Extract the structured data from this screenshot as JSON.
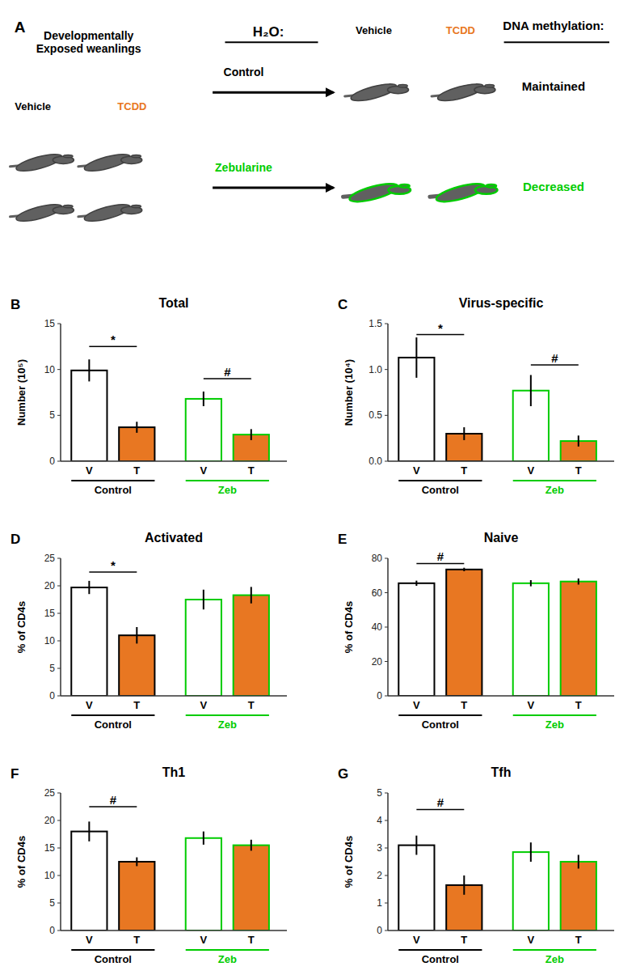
{
  "chart_data": [
    {
      "type": "diagram",
      "annotations": [
        {
          "text": "A"
        },
        {
          "text": "Developmentally\nExposed weanlings"
        },
        {
          "text": "Vehicle"
        },
        {
          "text": "TCDD",
          "color": "#E87722"
        },
        {
          "text": "H₂O:"
        },
        {
          "text": "Control"
        },
        {
          "text": "Zebularine",
          "color": "#00CC00"
        },
        {
          "text": "Vehicle"
        },
        {
          "text": "TCDD",
          "color": "#E87722"
        },
        {
          "text": "DNA methylation:"
        },
        {
          "text": "Maintained"
        },
        {
          "text": "Decreased",
          "color": "#00CC00"
        }
      ]
    },
    {
      "type": "bar",
      "panel_label": "B",
      "title": "Total",
      "ylabel": "Number (10⁵)",
      "categories": [
        "V",
        "T",
        "V",
        "T"
      ],
      "values": [
        9.9,
        3.7,
        6.8,
        2.9
      ],
      "errors": [
        1.2,
        0.6,
        0.8,
        0.6
      ],
      "colors": [
        "white",
        "#E87722",
        "white",
        "#E87722"
      ],
      "edge_colors": [
        "black",
        "black",
        "#00CC00",
        "#00CC00"
      ],
      "groups": [
        {
          "name": "Control",
          "color": "black"
        },
        {
          "name": "Zeb",
          "color": "#00CC00"
        }
      ],
      "ylim": [
        0,
        15
      ],
      "yticks": [
        0,
        5,
        10,
        15
      ],
      "grid": false,
      "annotations": [
        {
          "text": "*",
          "x1": 0,
          "x2": 1,
          "y": 12.5
        },
        {
          "text": "#",
          "x1": 2,
          "x2": 3,
          "y": 9.0
        }
      ]
    },
    {
      "type": "bar",
      "panel_label": "C",
      "title": "Virus-specific",
      "ylabel": "Number (10⁴)",
      "categories": [
        "V",
        "T",
        "V",
        "T"
      ],
      "values": [
        1.13,
        0.3,
        0.77,
        0.22
      ],
      "errors": [
        0.22,
        0.07,
        0.17,
        0.06
      ],
      "colors": [
        "white",
        "#E87722",
        "white",
        "#E87722"
      ],
      "edge_colors": [
        "black",
        "black",
        "#00CC00",
        "#00CC00"
      ],
      "groups": [
        {
          "name": "Control",
          "color": "black"
        },
        {
          "name": "Zeb",
          "color": "#00CC00"
        }
      ],
      "ylim": [
        0,
        1.5
      ],
      "yticks": [
        {
          "value": 0,
          "label": "0.0"
        },
        0.5,
        {
          "value": 1,
          "label": "1.0"
        },
        1.5
      ],
      "grid": false,
      "annotations": [
        {
          "text": "*",
          "x1": 0,
          "x2": 1,
          "y": 1.38
        },
        {
          "text": "#",
          "x1": 2,
          "x2": 3,
          "y": 1.05
        }
      ]
    },
    {
      "type": "bar",
      "panel_label": "D",
      "title": "Activated",
      "ylabel": "% of CD4s",
      "categories": [
        "V",
        "T",
        "V",
        "T"
      ],
      "values": [
        19.7,
        11.0,
        17.5,
        18.3
      ],
      "errors": [
        1.2,
        1.5,
        1.8,
        1.5
      ],
      "colors": [
        "white",
        "#E87722",
        "white",
        "#E87722"
      ],
      "edge_colors": [
        "black",
        "black",
        "#00CC00",
        "#00CC00"
      ],
      "groups": [
        {
          "name": "Control",
          "color": "black"
        },
        {
          "name": "Zeb",
          "color": "#00CC00"
        }
      ],
      "ylim": [
        0,
        25
      ],
      "yticks": [
        0,
        5,
        10,
        15,
        20,
        25
      ],
      "grid": false,
      "annotations": [
        {
          "text": "*",
          "x1": 0,
          "x2": 1,
          "y": 22.5
        }
      ]
    },
    {
      "type": "bar",
      "panel_label": "E",
      "title": "Naive",
      "ylabel": "% of CD4s",
      "categories": [
        "V",
        "T",
        "V",
        "T"
      ],
      "values": [
        65.5,
        73.5,
        65.5,
        66.5
      ],
      "errors": [
        1.5,
        1.0,
        1.8,
        1.8
      ],
      "colors": [
        "white",
        "#E87722",
        "white",
        "#E87722"
      ],
      "edge_colors": [
        "black",
        "black",
        "#00CC00",
        "#00CC00"
      ],
      "groups": [
        {
          "name": "Control",
          "color": "black"
        },
        {
          "name": "Zeb",
          "color": "#00CC00"
        }
      ],
      "ylim": [
        0,
        80
      ],
      "yticks": [
        0,
        20,
        40,
        60,
        80
      ],
      "grid": false,
      "annotations": [
        {
          "text": "#",
          "x1": 0,
          "x2": 1,
          "y": 77
        }
      ]
    },
    {
      "type": "bar",
      "panel_label": "F",
      "title": "Th1",
      "ylabel": "% of CD4s",
      "categories": [
        "V",
        "T",
        "V",
        "T"
      ],
      "values": [
        18.0,
        12.5,
        16.8,
        15.5
      ],
      "errors": [
        1.8,
        0.8,
        1.2,
        1.0
      ],
      "colors": [
        "white",
        "#E87722",
        "white",
        "#E87722"
      ],
      "edge_colors": [
        "black",
        "black",
        "#00CC00",
        "#00CC00"
      ],
      "groups": [
        {
          "name": "Control",
          "color": "black"
        },
        {
          "name": "Zeb",
          "color": "#00CC00"
        }
      ],
      "ylim": [
        0,
        25
      ],
      "yticks": [
        0,
        5,
        10,
        15,
        20,
        25
      ],
      "grid": false,
      "annotations": [
        {
          "text": "#",
          "x1": 0,
          "x2": 1,
          "y": 22.5
        }
      ]
    },
    {
      "type": "bar",
      "panel_label": "G",
      "title": "Tfh",
      "ylabel": "% of CD4s",
      "categories": [
        "V",
        "T",
        "V",
        "T"
      ],
      "values": [
        3.1,
        1.65,
        2.85,
        2.5
      ],
      "errors": [
        0.35,
        0.35,
        0.35,
        0.25
      ],
      "colors": [
        "white",
        "#E87722",
        "white",
        "#E87722"
      ],
      "edge_colors": [
        "black",
        "black",
        "#00CC00",
        "#00CC00"
      ],
      "groups": [
        {
          "name": "Control",
          "color": "black"
        },
        {
          "name": "Zeb",
          "color": "#00CC00"
        }
      ],
      "ylim": [
        0,
        5
      ],
      "yticks": [
        0,
        1,
        2,
        3,
        4,
        5
      ],
      "grid": false,
      "annotations": [
        {
          "text": "#",
          "x1": 0,
          "x2": 1,
          "y": 4.4
        }
      ]
    }
  ]
}
